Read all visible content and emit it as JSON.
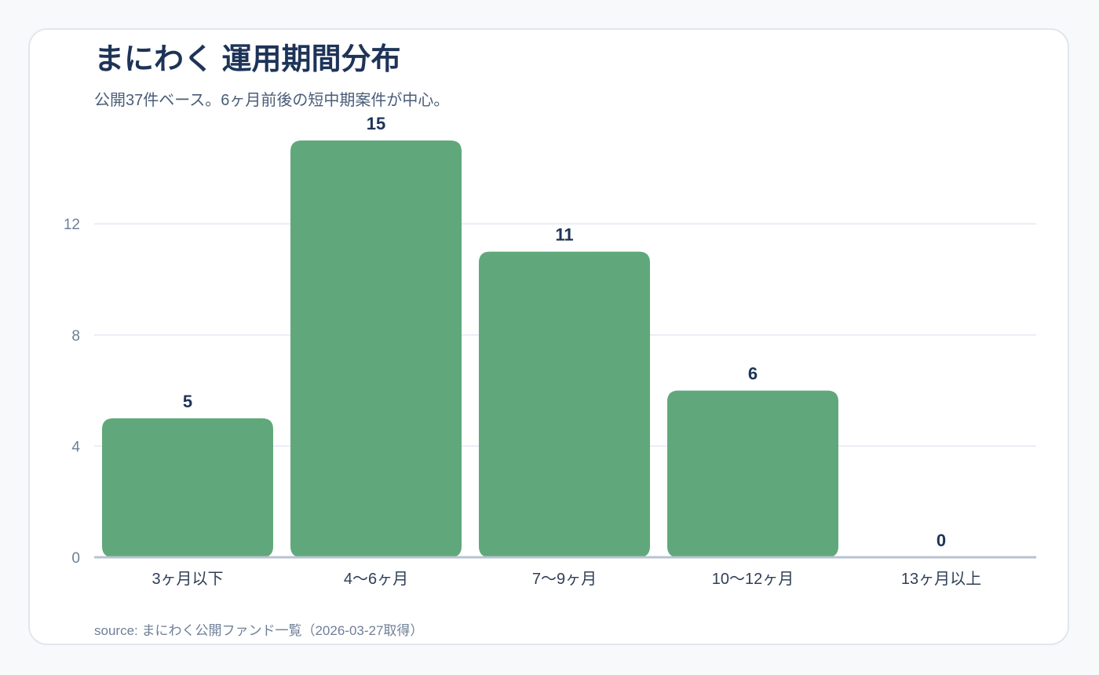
{
  "header": {
    "title": "まにわく 運用期間分布",
    "subtitle": "公開37件ベース。6ヶ月前後の短中期案件が中心。"
  },
  "footer": {
    "source": "source: まにわく公開ファンド一覧（2026-03-27取得）"
  },
  "colors": {
    "bar": "#60a87b",
    "grid": "#e3e9f1",
    "baseline": "#b8c3d3",
    "title": "#1e3358"
  },
  "chart_data": {
    "type": "bar",
    "title": "まにわく 運用期間分布",
    "subtitle": "公開37件ベース。6ヶ月前後の短中期案件が中心。",
    "categories": [
      "3ヶ月以下",
      "4〜6ヶ月",
      "7〜9ヶ月",
      "10〜12ヶ月",
      "13ヶ月以上"
    ],
    "values": [
      5,
      15,
      11,
      6,
      0
    ],
    "value_labels": [
      "5",
      "15",
      "11",
      "6",
      "0"
    ],
    "y_ticks": [
      0,
      4,
      8,
      12
    ],
    "y_tick_labels": [
      "0",
      "4",
      "8",
      "12"
    ],
    "ylim": [
      0,
      16.3
    ],
    "xlabel": "",
    "ylabel": "",
    "grid": true,
    "legend": "none"
  }
}
